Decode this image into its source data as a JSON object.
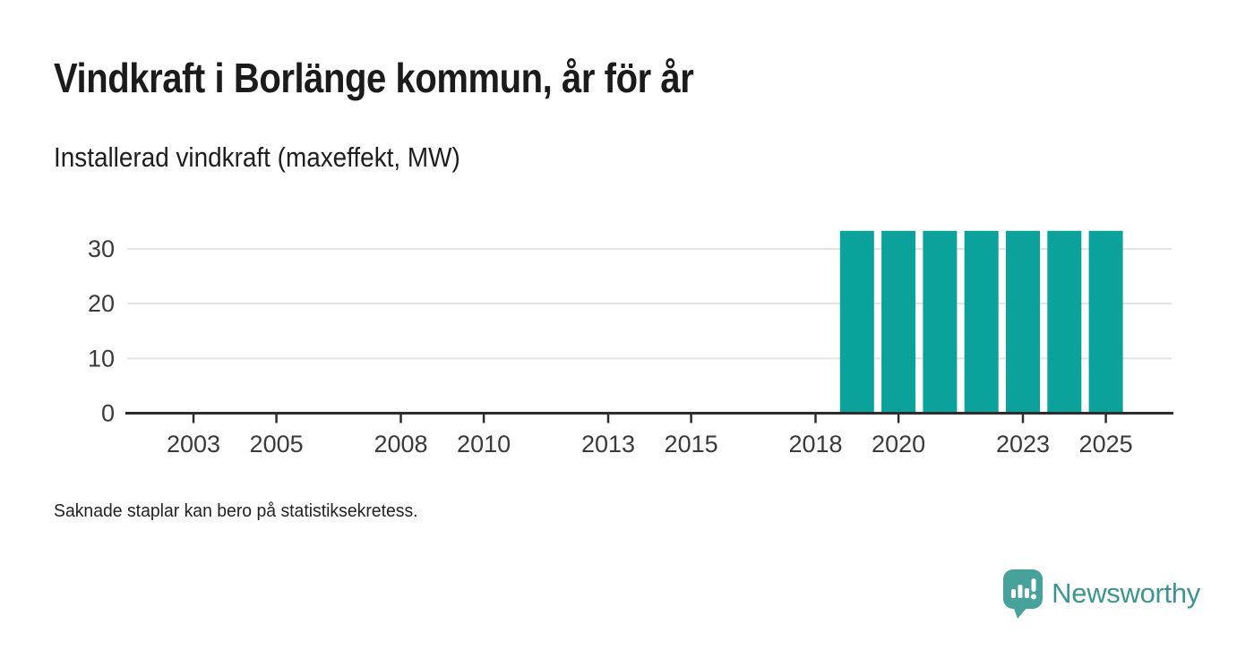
{
  "header": {
    "title": "Vindkraft i Borlänge kommun, år för år",
    "subtitle": "Installerad vindkraft (maxeffekt, MW)"
  },
  "footnote": "Saknade staplar kan bero på statistiksekretess.",
  "brand": {
    "name": "Newsworthy",
    "icon": "newsworthy-speech-bubble-bar-chart-icon",
    "icon_color": "#46a29a",
    "text_color": "#3a968f"
  },
  "colors": {
    "bar": "#0aa29a",
    "axis": "#2d2d2d",
    "grid": "#e3e3e3",
    "tick_text": "#3a3a3a"
  },
  "chart_data": {
    "type": "bar",
    "title": "Vindkraft i Borlänge kommun, år för år",
    "ylabel": "Installerad vindkraft (maxeffekt, MW)",
    "xlabel": "",
    "categories": [
      2002,
      2003,
      2004,
      2005,
      2006,
      2007,
      2008,
      2009,
      2010,
      2011,
      2012,
      2013,
      2014,
      2015,
      2016,
      2017,
      2018,
      2019,
      2020,
      2021,
      2022,
      2023,
      2024,
      2025
    ],
    "values": [
      null,
      null,
      null,
      null,
      null,
      null,
      null,
      null,
      null,
      null,
      null,
      null,
      null,
      null,
      null,
      null,
      null,
      33.3,
      33.3,
      33.3,
      33.3,
      33.3,
      33.3,
      33.3
    ],
    "x_tick_labels": [
      2003,
      2005,
      2008,
      2010,
      2013,
      2015,
      2018,
      2020,
      2023,
      2025
    ],
    "y_ticks": [
      0,
      10,
      20,
      30
    ],
    "ylim": [
      0,
      34.5
    ],
    "grid": "horizontal-only",
    "legend": "none",
    "note": "Saknade staplar kan bero på statistiksekretess."
  }
}
